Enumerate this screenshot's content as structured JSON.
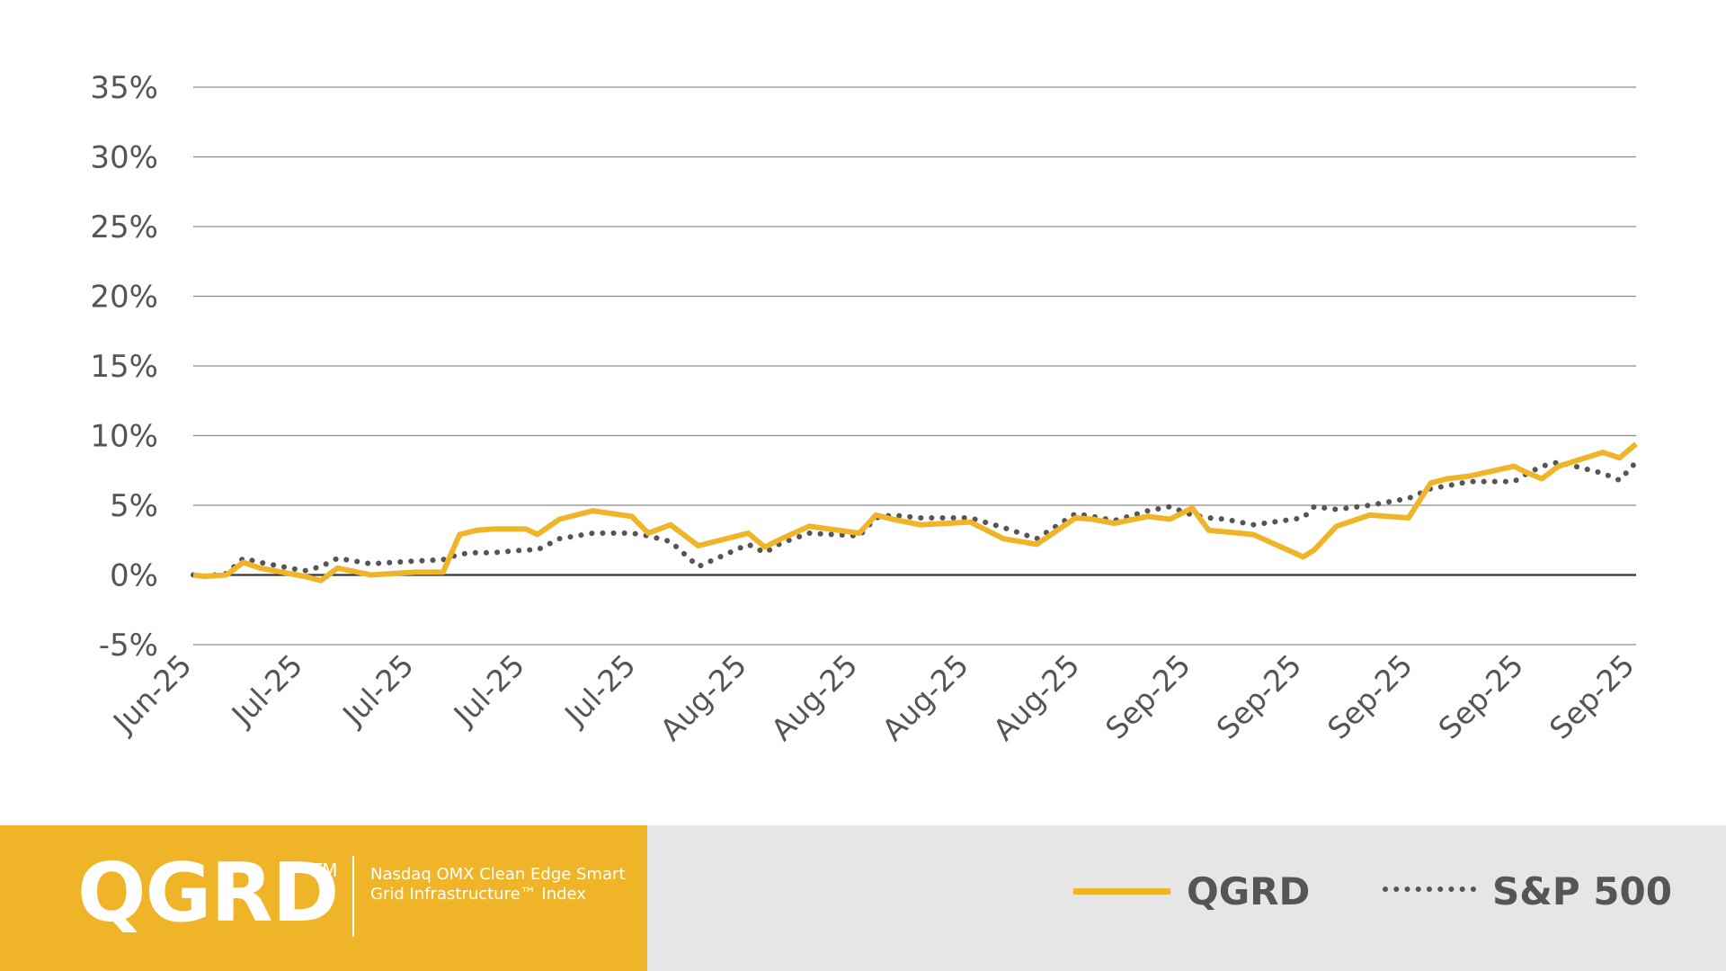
{
  "brand": {
    "ticker": "QGRD",
    "trademark": "TM",
    "index_name": "Nasdaq OMX Clean Edge Smart Grid Infrastructure™ Index"
  },
  "legend": {
    "items": [
      {
        "label": "QGRD",
        "color": "#f0b429",
        "style": "solid"
      },
      {
        "label": "S&P 500",
        "color": "#555555",
        "style": "dotted"
      }
    ]
  },
  "colors": {
    "accent": "#f0b429",
    "text": "#555555",
    "footer_bg": "#e6e6e6",
    "grid": "#8c8c8c",
    "zero_line": "#333333"
  },
  "chart_data": {
    "type": "line",
    "title": "",
    "xlabel": "",
    "ylabel": "",
    "ylim": [
      -5,
      35
    ],
    "y_ticks": [
      -5,
      0,
      5,
      10,
      15,
      20,
      25,
      30,
      35
    ],
    "y_tick_labels": [
      "-5%",
      "0%",
      "5%",
      "10%",
      "15%",
      "20%",
      "25%",
      "30%",
      "35%"
    ],
    "grid": true,
    "x_tick_labels": [
      "Jun-25",
      "Jul-25",
      "Jul-25",
      "Jul-25",
      "Jul-25",
      "Aug-25",
      "Aug-25",
      "Aug-25",
      "Aug-25",
      "Sep-25",
      "Sep-25",
      "Sep-25",
      "Sep-25",
      "Sep-25"
    ],
    "x_range": [
      0,
      13
    ],
    "series": [
      {
        "name": "QGRD",
        "x": [
          0,
          0.1,
          0.3,
          0.45,
          0.6,
          0.8,
          1.0,
          1.15,
          1.3,
          1.6,
          2.0,
          2.25,
          2.4,
          2.55,
          2.7,
          3.0,
          3.1,
          3.3,
          3.6,
          3.95,
          4.1,
          4.3,
          4.55,
          5.0,
          5.15,
          5.3,
          5.55,
          6.0,
          6.15,
          6.3,
          6.55,
          7.0,
          7.3,
          7.6,
          7.95,
          8.1,
          8.3,
          8.6,
          8.8,
          9.0,
          9.15,
          9.3,
          9.55,
          10.0,
          10.1,
          10.3,
          10.6,
          10.95,
          11.15,
          11.3,
          11.5,
          11.9,
          12.0,
          12.15,
          12.3,
          12.7,
          12.85,
          13.0
        ],
        "values": [
          0,
          -0.1,
          0.0,
          0.9,
          0.5,
          0.2,
          -0.1,
          -0.4,
          0.5,
          0.0,
          0.2,
          0.2,
          2.9,
          3.2,
          3.3,
          3.3,
          2.9,
          4.0,
          4.6,
          4.2,
          3.0,
          3.6,
          2.1,
          3.0,
          2.0,
          2.6,
          3.5,
          3.0,
          4.3,
          4.0,
          3.6,
          3.8,
          2.6,
          2.2,
          4.1,
          4.0,
          3.7,
          4.2,
          4.0,
          4.8,
          3.2,
          3.1,
          2.9,
          1.3,
          1.8,
          3.5,
          4.3,
          4.1,
          6.6,
          6.9,
          7.1,
          7.8,
          7.4,
          6.9,
          7.8,
          8.8,
          8.4,
          9.4
        ]
      },
      {
        "name": "S&P 500",
        "x": [
          0,
          0.1,
          0.3,
          0.45,
          0.6,
          0.8,
          1.0,
          1.15,
          1.3,
          1.6,
          2.0,
          2.25,
          2.4,
          2.55,
          2.7,
          3.0,
          3.1,
          3.3,
          3.6,
          3.95,
          4.1,
          4.3,
          4.55,
          5.0,
          5.15,
          5.3,
          5.55,
          6.0,
          6.15,
          6.3,
          6.55,
          7.0,
          7.3,
          7.6,
          7.95,
          8.1,
          8.3,
          8.6,
          8.8,
          9.0,
          9.15,
          9.3,
          9.55,
          10.0,
          10.1,
          10.3,
          10.6,
          10.95,
          11.15,
          11.3,
          11.5,
          11.9,
          12.0,
          12.15,
          12.3,
          12.7,
          12.85,
          13.0
        ],
        "values": [
          0,
          -0.1,
          0.1,
          1.2,
          0.9,
          0.6,
          0.3,
          0.6,
          1.2,
          0.8,
          1.0,
          1.1,
          1.5,
          1.6,
          1.6,
          1.8,
          1.8,
          2.6,
          3.0,
          3.0,
          2.8,
          2.4,
          0.6,
          2.2,
          1.6,
          2.3,
          3.0,
          2.8,
          4.1,
          4.3,
          4.1,
          4.1,
          3.4,
          2.6,
          4.4,
          4.2,
          3.9,
          4.6,
          4.9,
          4.3,
          4.1,
          4.0,
          3.6,
          4.1,
          4.9,
          4.7,
          5.0,
          5.5,
          6.2,
          6.4,
          6.7,
          6.7,
          7.2,
          7.8,
          8.1,
          7.3,
          6.8,
          8.1
        ]
      }
    ]
  }
}
